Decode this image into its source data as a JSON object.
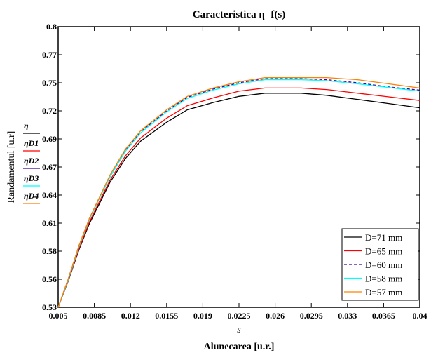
{
  "chart_data": {
    "type": "line",
    "title": "Caracteristica η=f(s)",
    "xlabel_symbol": "s",
    "xlabel": "Alunecarea [u.r.]",
    "ylabel": "Randamentul [u.r]",
    "ylabel_series": [
      "η",
      "ηD1",
      "ηD2",
      "ηD3",
      "ηD4"
    ],
    "xlim": [
      0.005,
      0.04
    ],
    "ylim": [
      0.53,
      0.8
    ],
    "x_ticks": [
      "0.005",
      "0.0085",
      "0.012",
      "0.0155",
      "0.019",
      "0.0225",
      "0.026",
      "0.0295",
      "0.033",
      "0.0365",
      "0.04"
    ],
    "y_ticks": [
      "0.53",
      "0.56",
      "0.58",
      "0.61",
      "0.64",
      "0.67",
      "0.69",
      "0.72",
      "0.75",
      "0.77",
      "0.8"
    ],
    "grid": false,
    "legend_position": "bottom-right",
    "x": [
      0.005,
      0.006,
      0.007,
      0.008,
      0.009,
      0.01,
      0.0115,
      0.013,
      0.0155,
      0.0175,
      0.02,
      0.0225,
      0.025,
      0.0285,
      0.031,
      0.034,
      0.037,
      0.04
    ],
    "series": [
      {
        "name": "D=71 mm",
        "color": "#000000",
        "values": [
          0.53,
          0.556,
          0.585,
          0.61,
          0.63,
          0.65,
          0.673,
          0.69,
          0.708,
          0.72,
          0.727,
          0.733,
          0.736,
          0.736,
          0.734,
          0.73,
          0.726,
          0.722
        ]
      },
      {
        "name": "D=65 mm",
        "color": "#ff0000",
        "values": [
          0.53,
          0.5565,
          0.586,
          0.6115,
          0.632,
          0.652,
          0.6755,
          0.693,
          0.712,
          0.724,
          0.7315,
          0.738,
          0.741,
          0.741,
          0.7395,
          0.736,
          0.7325,
          0.729
        ]
      },
      {
        "name": "D=60 mm",
        "color": "#4b0096",
        "dashed": true,
        "values": [
          0.53,
          0.558,
          0.589,
          0.615,
          0.636,
          0.656,
          0.681,
          0.699,
          0.719,
          0.732,
          0.74,
          0.746,
          0.75,
          0.75,
          0.749,
          0.746,
          0.742,
          0.739
        ]
      },
      {
        "name": "D=58 mm",
        "color": "#00ffff",
        "values": [
          0.53,
          0.557,
          0.588,
          0.614,
          0.635,
          0.655,
          0.68,
          0.698,
          0.718,
          0.731,
          0.739,
          0.745,
          0.749,
          0.749,
          0.748,
          0.745,
          0.7415,
          0.738
        ]
      },
      {
        "name": "D=57 mm",
        "color": "#ff8000",
        "values": [
          0.53,
          0.558,
          0.589,
          0.615,
          0.636,
          0.657,
          0.682,
          0.7,
          0.72,
          0.733,
          0.741,
          0.747,
          0.751,
          0.751,
          0.751,
          0.749,
          0.745,
          0.741
        ]
      }
    ]
  }
}
